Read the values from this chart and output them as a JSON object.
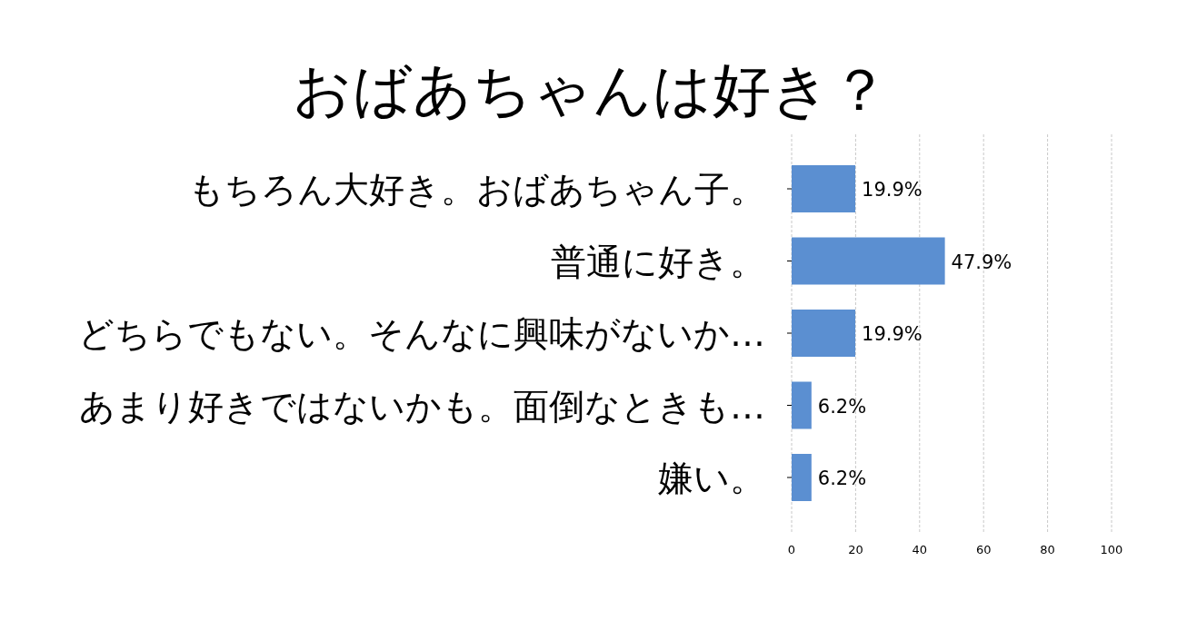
{
  "chart_data": {
    "type": "bar",
    "orientation": "horizontal",
    "title": "おばあちゃんは好き？",
    "categories": [
      "もちろん大好き。おばあちゃん子。",
      "普通に好き。",
      "どちらでもない。そんなに興味がないか…",
      "あまり好きではないかも。面倒なときも…",
      "嫌い。"
    ],
    "values": [
      19.9,
      47.9,
      19.9,
      6.2,
      6.2
    ],
    "value_labels": [
      "19.9%",
      "47.9%",
      "19.9%",
      "6.2%",
      "6.2%"
    ],
    "color": "#5b8fd1",
    "xlim": [
      0,
      100
    ],
    "xticks": [
      0,
      20,
      40,
      60,
      80,
      100
    ],
    "grid": "x"
  }
}
